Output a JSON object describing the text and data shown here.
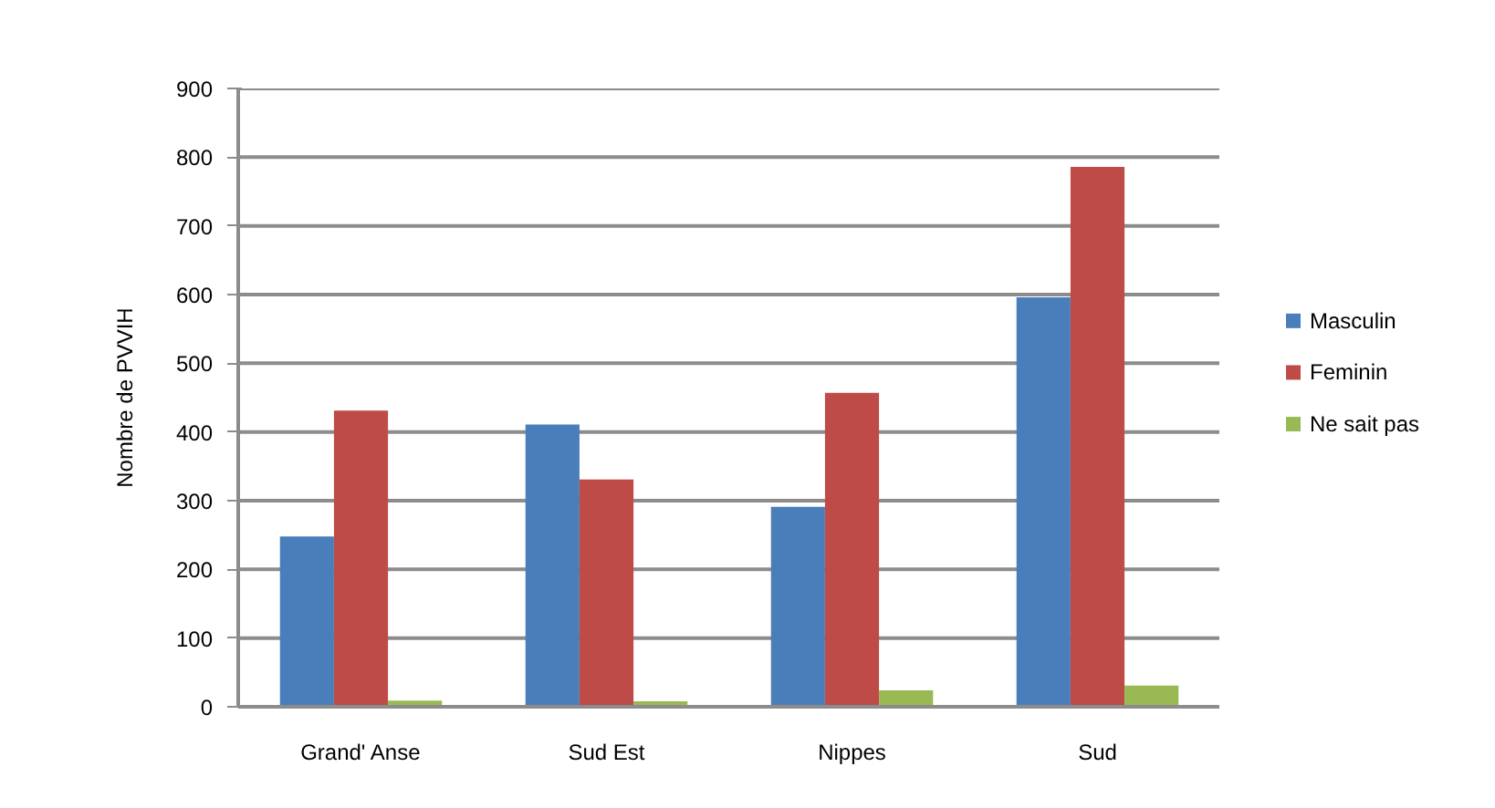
{
  "chart_data": {
    "type": "bar",
    "ylabel": "Nombre de PVVIH",
    "categories": [
      "Grand' Anse",
      "Sud Est",
      "Nippes",
      "Sud"
    ],
    "series": [
      {
        "name": "Masculin",
        "color": "#4a7ebb",
        "values": [
          248,
          411,
          291,
          596
        ]
      },
      {
        "name": "Feminin",
        "color": "#be4b48",
        "values": [
          431,
          331,
          457,
          786
        ]
      },
      {
        "name": "Ne sait pas",
        "color": "#98b954",
        "values": [
          9,
          8,
          24,
          31
        ]
      }
    ],
    "ylim": [
      0,
      900
    ],
    "yticks": [
      0,
      100,
      200,
      300,
      400,
      500,
      600,
      700,
      800,
      900
    ],
    "grid": "y",
    "legend": "right"
  }
}
